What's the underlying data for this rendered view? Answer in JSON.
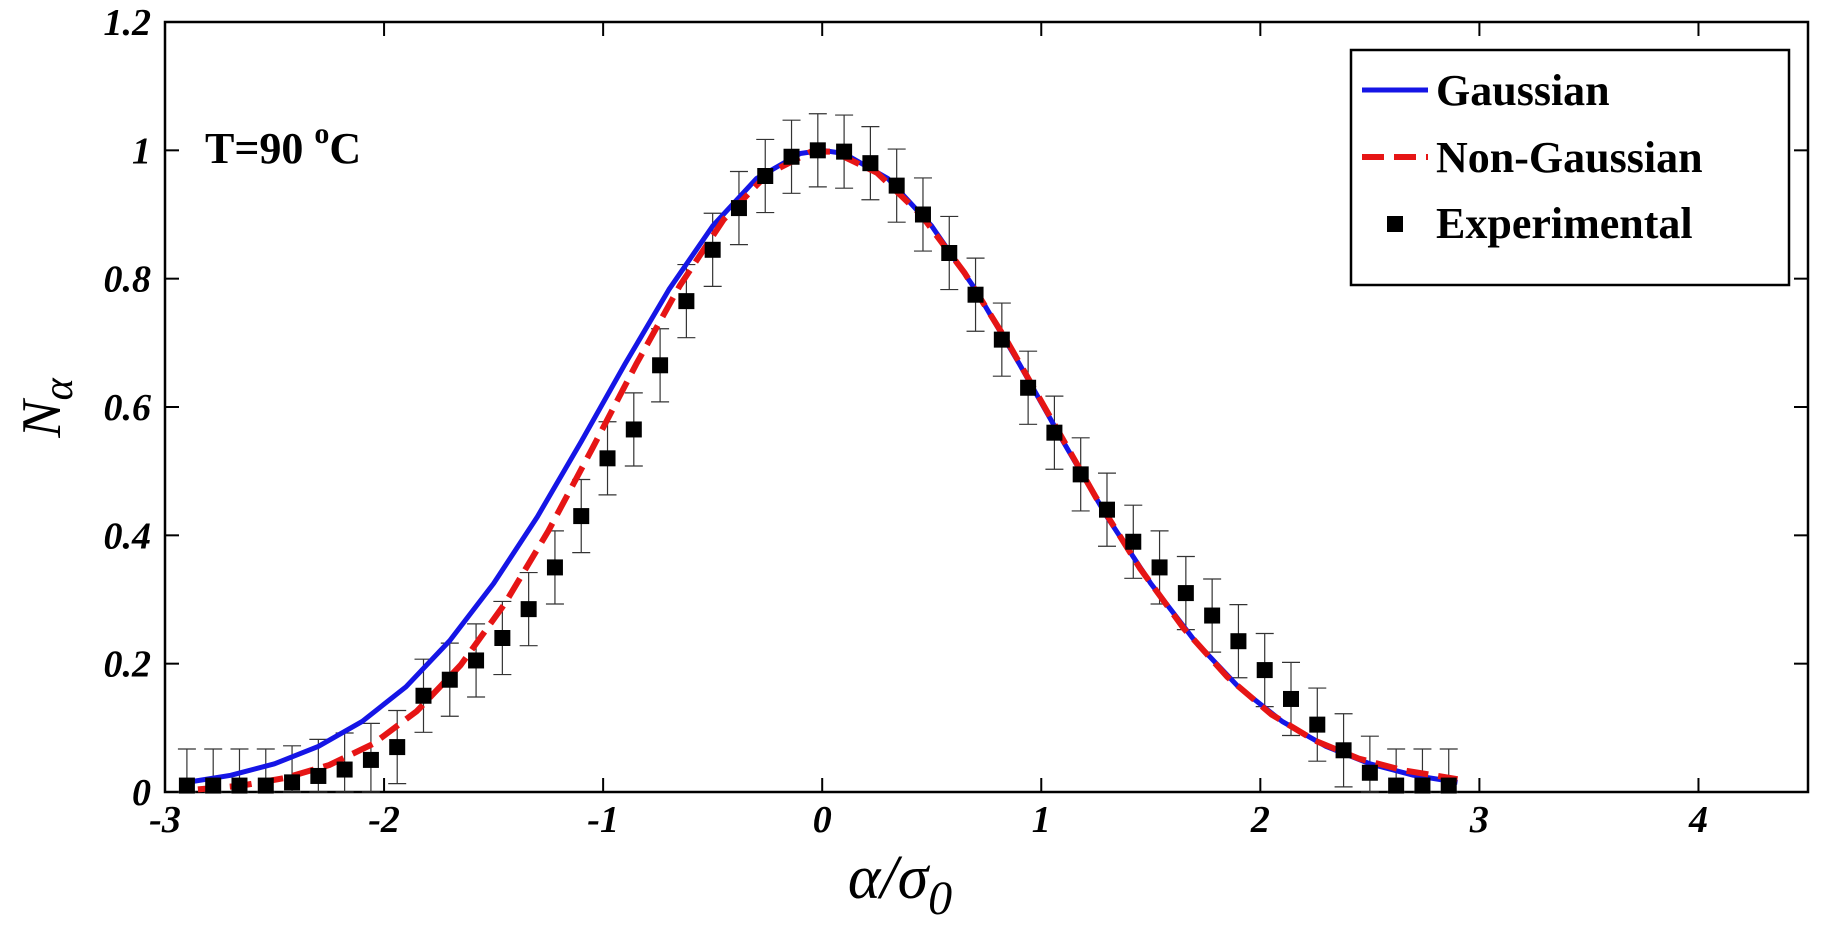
{
  "chart_data": {
    "type": "line",
    "title": "",
    "xlabel": "α/σ0",
    "xlabel_main": "α/σ",
    "xlabel_sub": "0",
    "ylabel": "Nα",
    "ylabel_main": "N",
    "ylabel_sub": "α",
    "xlim": [
      -3,
      4.5
    ],
    "ylim": [
      0,
      1.2
    ],
    "xticks": [
      -3,
      -2,
      -1,
      0,
      1,
      2,
      3,
      4
    ],
    "xtick_labels": [
      "-3",
      "-2",
      "-1",
      "0",
      "1",
      "2",
      "3",
      "4"
    ],
    "yticks": [
      0,
      0.2,
      0.4,
      0.6,
      0.8,
      1,
      1.2
    ],
    "ytick_labels": [
      "0",
      "0.2",
      "0.4",
      "0.6",
      "0.8",
      "1",
      "1.2"
    ],
    "grid": false,
    "legend_position": "top-right",
    "annotation": {
      "text": "T=90 ",
      "sup": "o",
      "unit": "C"
    },
    "series": [
      {
        "name": "Gaussian",
        "style": "solid",
        "color": "#1515e6",
        "x": [
          -2.9,
          -2.7,
          -2.5,
          -2.3,
          -2.1,
          -1.9,
          -1.7,
          -1.5,
          -1.3,
          -1.1,
          -0.9,
          -0.7,
          -0.5,
          -0.3,
          -0.1,
          0.0,
          0.1,
          0.3,
          0.5,
          0.7,
          0.9,
          1.1,
          1.3,
          1.5,
          1.7,
          1.9,
          2.1,
          2.3,
          2.5,
          2.7,
          2.9
        ],
        "y": [
          0.015,
          0.026,
          0.044,
          0.071,
          0.11,
          0.164,
          0.236,
          0.325,
          0.429,
          0.546,
          0.667,
          0.783,
          0.882,
          0.956,
          0.995,
          1.0,
          0.995,
          0.956,
          0.882,
          0.783,
          0.667,
          0.546,
          0.429,
          0.325,
          0.236,
          0.164,
          0.11,
          0.071,
          0.044,
          0.026,
          0.015
        ]
      },
      {
        "name": "Non-Gaussian",
        "style": "dashed",
        "color": "#e61515",
        "x": [
          -2.85,
          -2.65,
          -2.45,
          -2.25,
          -2.05,
          -1.85,
          -1.65,
          -1.45,
          -1.25,
          -1.05,
          -0.85,
          -0.65,
          -0.45,
          -0.25,
          -0.05,
          0.05,
          0.25,
          0.45,
          0.65,
          0.85,
          1.05,
          1.25,
          1.45,
          1.65,
          1.85,
          2.05,
          2.25,
          2.45,
          2.65,
          2.9
        ],
        "y": [
          0.004,
          0.01,
          0.022,
          0.042,
          0.075,
          0.126,
          0.198,
          0.293,
          0.407,
          0.535,
          0.666,
          0.789,
          0.892,
          0.963,
          0.998,
          0.998,
          0.965,
          0.9,
          0.809,
          0.699,
          0.579,
          0.459,
          0.349,
          0.255,
          0.179,
          0.121,
          0.08,
          0.052,
          0.034,
          0.02
        ]
      },
      {
        "name": "Experimental",
        "style": "markers",
        "color": "#000000",
        "x": [
          -2.9,
          -2.78,
          -2.66,
          -2.54,
          -2.42,
          -2.3,
          -2.18,
          -2.06,
          -1.94,
          -1.82,
          -1.7,
          -1.58,
          -1.46,
          -1.34,
          -1.22,
          -1.1,
          -0.98,
          -0.86,
          -0.74,
          -0.62,
          -0.5,
          -0.38,
          -0.26,
          -0.14,
          -0.02,
          0.1,
          0.22,
          0.34,
          0.46,
          0.58,
          0.7,
          0.82,
          0.94,
          1.06,
          1.18,
          1.3,
          1.42,
          1.54,
          1.66,
          1.78,
          1.9,
          2.02,
          2.14,
          2.26,
          2.38,
          2.5,
          2.62,
          2.74,
          2.86
        ],
        "y": [
          0.01,
          0.01,
          0.01,
          0.01,
          0.015,
          0.025,
          0.035,
          0.05,
          0.07,
          0.15,
          0.175,
          0.205,
          0.24,
          0.285,
          0.35,
          0.43,
          0.52,
          0.565,
          0.665,
          0.765,
          0.845,
          0.91,
          0.96,
          0.99,
          1.0,
          0.998,
          0.98,
          0.945,
          0.9,
          0.84,
          0.775,
          0.705,
          0.63,
          0.56,
          0.495,
          0.44,
          0.39,
          0.35,
          0.31,
          0.275,
          0.235,
          0.19,
          0.145,
          0.105,
          0.065,
          0.03,
          0.01,
          0.01,
          0.01
        ],
        "error": 0.057
      }
    ]
  }
}
